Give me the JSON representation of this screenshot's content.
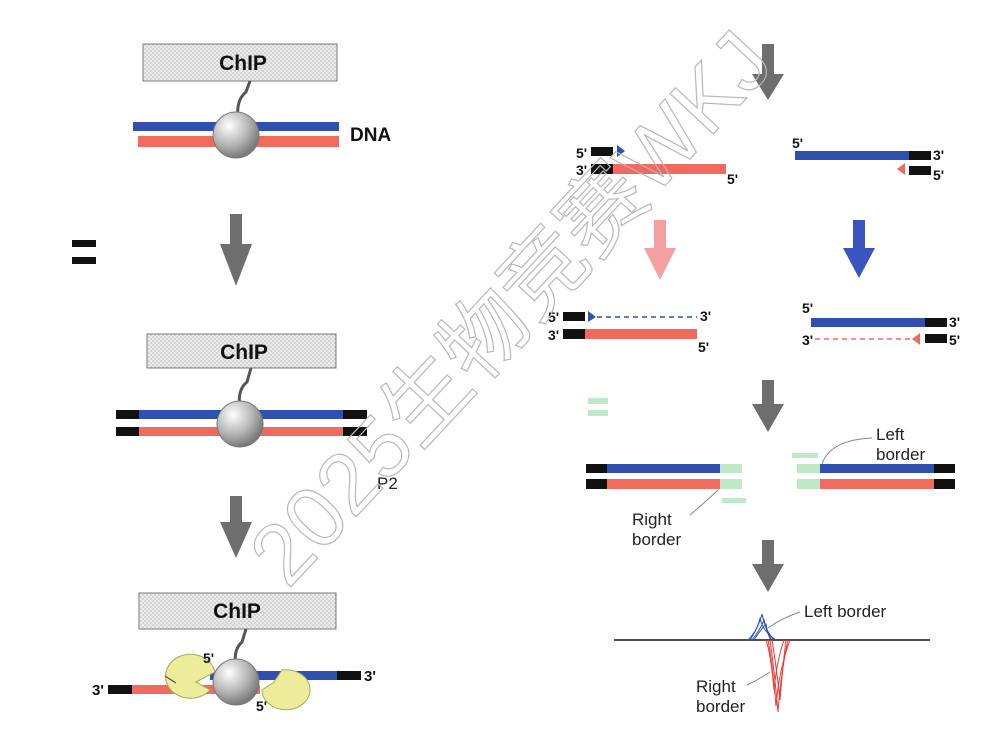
{
  "chip_label": "ChIP",
  "dna_label": "DNA",
  "p2_label": "P2",
  "end_5": "5'",
  "end_3": "3'",
  "left_border_line1": "Left",
  "left_border_line2": "border",
  "right_border_line1": "Right",
  "right_border_line2": "border",
  "left_border_single": "Left border",
  "watermark": "2025生物竞赛WKJ",
  "colors": {
    "blue_strand": "#3050b0",
    "red_strand": "#f06a5e",
    "adapter": "#111111",
    "arrow_gray": "#6e6e6e",
    "arrow_pink": "#f4a0a0",
    "arrow_blue": "#3a55c0",
    "chip_box_fill": "#e4e4e4",
    "protein": "#b8b8b8",
    "exonuclease": "#ecec9a",
    "primer_green": "#bfe8c8"
  }
}
